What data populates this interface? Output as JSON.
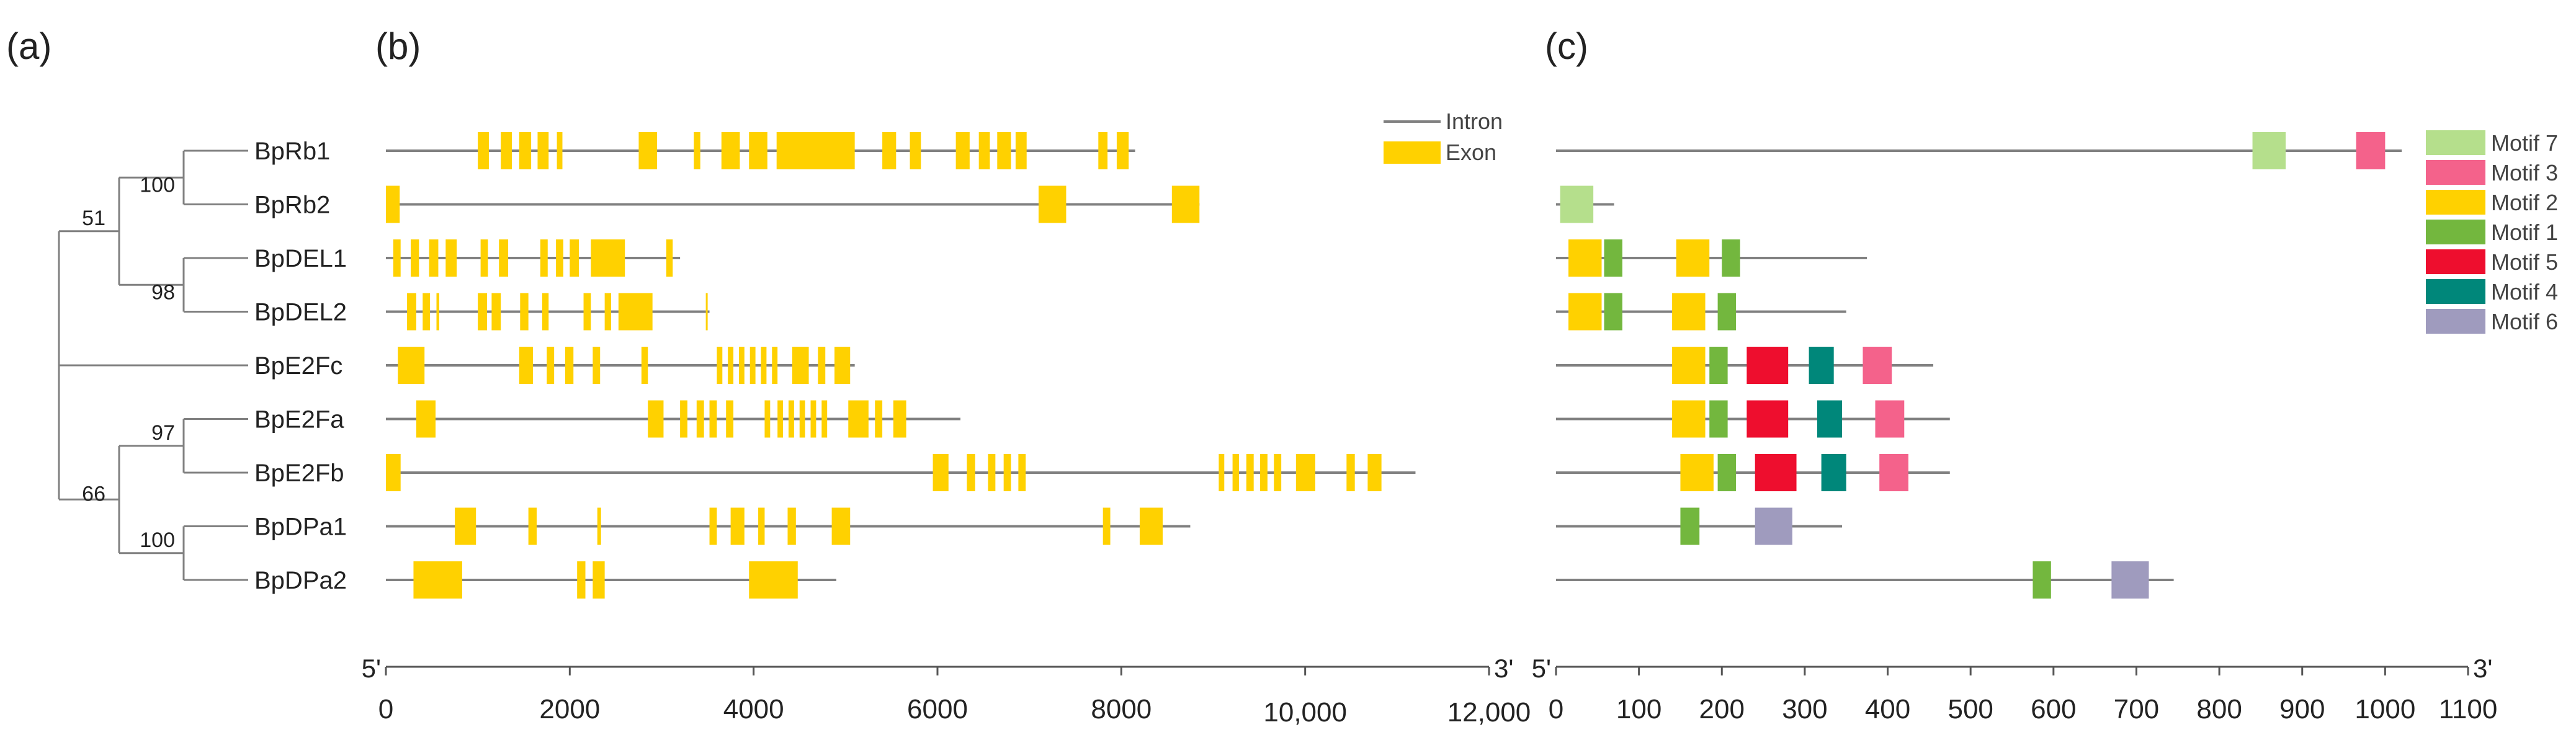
{
  "panel_labels": {
    "a": "(a)",
    "b": "(b)",
    "c": "(c)"
  },
  "genes": [
    "BpRb1",
    "BpRb2",
    "BpDEL1",
    "BpDEL2",
    "BpE2Fc",
    "BpE2Fa",
    "BpE2Fb",
    "BpDPa1",
    "BpDPa2"
  ],
  "tree": {
    "bootstrap": [
      {
        "label": "100",
        "node": "rb"
      },
      {
        "label": "51",
        "node": "rbdel"
      },
      {
        "label": "98",
        "node": "del"
      },
      {
        "label": "97",
        "node": "e2f"
      },
      {
        "label": "66",
        "node": "e2fdp"
      },
      {
        "label": "100",
        "node": "dp"
      }
    ]
  },
  "legend_b": {
    "intron": "Intron",
    "exon": "Exon"
  },
  "colors": {
    "exon": "#FFD100",
    "line": "#808080",
    "Motif 7": "#B5DF8C",
    "Motif 3": "#F4628B",
    "Motif 2": "#FFD100",
    "Motif 1": "#73B73E",
    "Motif 5": "#EE0E2E",
    "Motif 4": "#00877A",
    "Motif 6": "#9F9BBE"
  },
  "gene_structure": {
    "axis": {
      "min": 0,
      "max": 12000,
      "ticks": [
        "0",
        "2000",
        "4000",
        "6000",
        "8000",
        "10,000",
        "12,000"
      ],
      "tick_values": [
        0,
        2000,
        4000,
        6000,
        8000,
        10000,
        12000
      ],
      "end5": "5'",
      "end3": "3'"
    },
    "lengths": [
      8150,
      8850,
      3200,
      3520,
      5100,
      6250,
      11200,
      8750,
      4900
    ],
    "exons": [
      [
        [
          1000,
          1120
        ],
        [
          1250,
          1370
        ],
        [
          1450,
          1580
        ],
        [
          1650,
          1770
        ],
        [
          1860,
          1920
        ],
        [
          2750,
          2950
        ],
        [
          3350,
          3420
        ],
        [
          3650,
          3850
        ],
        [
          3950,
          4150
        ],
        [
          4250,
          5100
        ],
        [
          5400,
          5550
        ],
        [
          5700,
          5820
        ],
        [
          6200,
          6350
        ],
        [
          6450,
          6570
        ],
        [
          6650,
          6800
        ],
        [
          6850,
          6970
        ],
        [
          7750,
          7850
        ],
        [
          7950,
          8080
        ]
      ],
      [
        [
          0,
          150
        ],
        [
          7100,
          7400
        ],
        [
          8550,
          8850
        ]
      ],
      [
        [
          80,
          160
        ],
        [
          270,
          360
        ],
        [
          470,
          570
        ],
        [
          650,
          770
        ],
        [
          1030,
          1110
        ],
        [
          1230,
          1330
        ],
        [
          1680,
          1760
        ],
        [
          1850,
          1930
        ],
        [
          2000,
          2100
        ],
        [
          2230,
          2600
        ],
        [
          3050,
          3120
        ]
      ],
      [
        [
          230,
          330
        ],
        [
          400,
          480
        ],
        [
          550,
          580
        ],
        [
          1000,
          1100
        ],
        [
          1150,
          1250
        ],
        [
          1460,
          1550
        ],
        [
          1700,
          1770
        ],
        [
          2150,
          2230
        ],
        [
          2380,
          2450
        ],
        [
          2530,
          2900
        ],
        [
          3480,
          3500
        ]
      ],
      [
        [
          130,
          420
        ],
        [
          1450,
          1600
        ],
        [
          1750,
          1830
        ],
        [
          1950,
          2040
        ],
        [
          2250,
          2330
        ],
        [
          2780,
          2850
        ],
        [
          3600,
          3660
        ],
        [
          3720,
          3780
        ],
        [
          3840,
          3900
        ],
        [
          3960,
          4020
        ],
        [
          4080,
          4140
        ],
        [
          4200,
          4260
        ],
        [
          4420,
          4600
        ],
        [
          4700,
          4780
        ],
        [
          4880,
          5050
        ]
      ],
      [
        [
          330,
          540
        ],
        [
          2850,
          3020
        ],
        [
          3200,
          3280
        ],
        [
          3380,
          3460
        ],
        [
          3520,
          3600
        ],
        [
          3700,
          3780
        ],
        [
          4120,
          4180
        ],
        [
          4260,
          4320
        ],
        [
          4380,
          4440
        ],
        [
          4500,
          4560
        ],
        [
          4620,
          4680
        ],
        [
          4740,
          4800
        ],
        [
          5030,
          5250
        ],
        [
          5320,
          5400
        ],
        [
          5520,
          5660
        ]
      ],
      [
        [
          0,
          160
        ],
        [
          5950,
          6120
        ],
        [
          6320,
          6410
        ],
        [
          6550,
          6630
        ],
        [
          6720,
          6800
        ],
        [
          6880,
          6960
        ],
        [
          9060,
          9120
        ],
        [
          9210,
          9280
        ],
        [
          9360,
          9440
        ],
        [
          9510,
          9590
        ],
        [
          9660,
          9740
        ],
        [
          9900,
          10110
        ],
        [
          10450,
          10540
        ],
        [
          10680,
          10830
        ]
      ],
      [
        [
          750,
          980
        ],
        [
          1550,
          1640
        ],
        [
          2300,
          2340
        ],
        [
          3520,
          3600
        ],
        [
          3750,
          3900
        ],
        [
          4050,
          4120
        ],
        [
          4370,
          4460
        ],
        [
          4850,
          5050
        ],
        [
          7800,
          7880
        ],
        [
          8200,
          8450
        ]
      ],
      [
        [
          300,
          830
        ],
        [
          2080,
          2170
        ],
        [
          2250,
          2380
        ],
        [
          3950,
          4480
        ]
      ]
    ]
  },
  "motif_structure": {
    "axis": {
      "min": 0,
      "max": 1100,
      "ticks": [
        "0",
        "100",
        "200",
        "300",
        "400",
        "500",
        "600",
        "700",
        "800",
        "900",
        "1000",
        "1100"
      ],
      "tick_values": [
        0,
        100,
        200,
        300,
        400,
        500,
        600,
        700,
        800,
        900,
        1000,
        1100
      ],
      "end5": "5'",
      "end3": "3'"
    },
    "lengths": [
      1020,
      70,
      375,
      350,
      455,
      475,
      475,
      345,
      745
    ],
    "motifs": [
      [
        [
          "Motif 7",
          840,
          880
        ],
        [
          "Motif 3",
          965,
          1000
        ]
      ],
      [
        [
          "Motif 7",
          5,
          45
        ]
      ],
      [
        [
          "Motif 2",
          15,
          55
        ],
        [
          "Motif 1",
          58,
          80
        ],
        [
          "Motif 2",
          145,
          185
        ],
        [
          "Motif 1",
          200,
          222
        ]
      ],
      [
        [
          "Motif 2",
          15,
          55
        ],
        [
          "Motif 1",
          58,
          80
        ],
        [
          "Motif 2",
          140,
          180
        ],
        [
          "Motif 1",
          195,
          217
        ]
      ],
      [
        [
          "Motif 2",
          140,
          180
        ],
        [
          "Motif 1",
          185,
          207
        ],
        [
          "Motif 5",
          230,
          280
        ],
        [
          "Motif 4",
          305,
          335
        ],
        [
          "Motif 3",
          370,
          405
        ]
      ],
      [
        [
          "Motif 2",
          140,
          180
        ],
        [
          "Motif 1",
          185,
          207
        ],
        [
          "Motif 5",
          230,
          280
        ],
        [
          "Motif 4",
          315,
          345
        ],
        [
          "Motif 3",
          385,
          420
        ]
      ],
      [
        [
          "Motif 2",
          150,
          190
        ],
        [
          "Motif 1",
          195,
          217
        ],
        [
          "Motif 5",
          240,
          290
        ],
        [
          "Motif 4",
          320,
          350
        ],
        [
          "Motif 3",
          390,
          425
        ]
      ],
      [
        [
          "Motif 1",
          150,
          173
        ],
        [
          "Motif 6",
          240,
          285
        ]
      ],
      [
        [
          "Motif 1",
          575,
          597
        ],
        [
          "Motif 6",
          670,
          715
        ]
      ]
    ]
  },
  "legend_c": [
    "Motif 7",
    "Motif 3",
    "Motif 2",
    "Motif 1",
    "Motif 5",
    "Motif 4",
    "Motif 6"
  ]
}
